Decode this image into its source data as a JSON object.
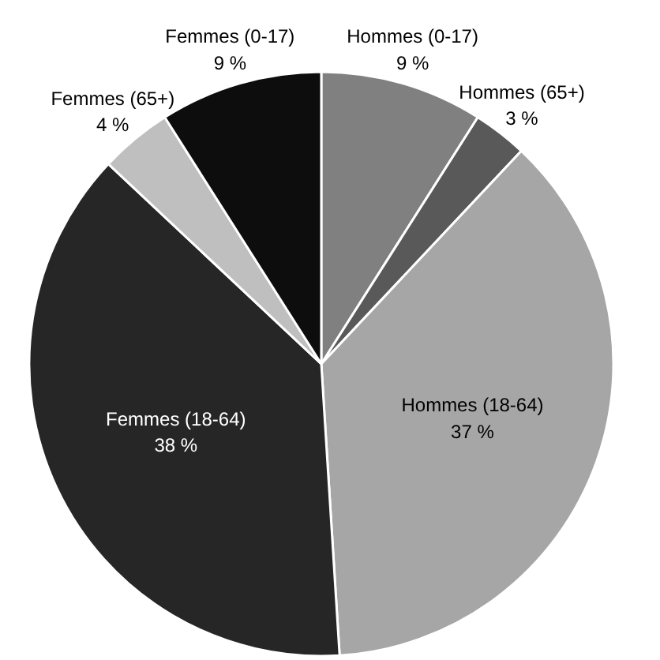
{
  "chart_data": {
    "type": "pie",
    "categories": [
      "Hommes (0-17)",
      "Hommes (65+)",
      "Hommes (18-64)",
      "Femmes (18-64)",
      "Femmes (65+)",
      "Femmes (0-17)"
    ],
    "values": [
      9,
      3,
      37,
      38,
      4,
      9
    ],
    "value_labels": [
      "9 %",
      "3 %",
      "37 %",
      "38 %",
      "4 %",
      "9 %"
    ],
    "colors": [
      "#808080",
      "#595959",
      "#a6a6a6",
      "#262626",
      "#bfbfbf",
      "#0d0d0d"
    ]
  }
}
